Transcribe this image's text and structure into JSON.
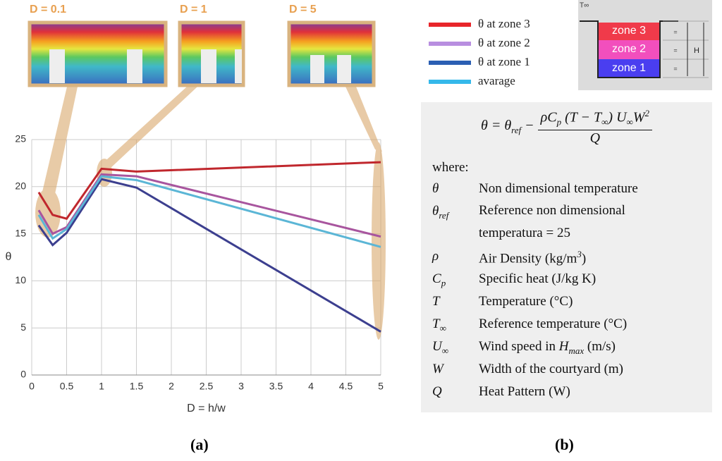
{
  "chart_data": {
    "type": "line",
    "x_label": "D = h/w",
    "y_label": "θ",
    "x": [
      0.1,
      0.3,
      0.5,
      1,
      1.5,
      5
    ],
    "series": [
      {
        "name": "θ at zone 3",
        "color": "#c0272d",
        "legend_color": "#e8252a",
        "values": [
          19.4,
          17.0,
          16.6,
          21.9,
          21.6,
          22.6
        ]
      },
      {
        "name": "θ at zone 2",
        "color": "#a8559e",
        "legend_color": "#b88ee0",
        "values": [
          17.5,
          15.0,
          15.7,
          21.3,
          21.1,
          14.7
        ]
      },
      {
        "name": "θ at zone 1",
        "color": "#3c3f8f",
        "legend_color": "#2b5fb3",
        "values": [
          15.9,
          13.8,
          15.1,
          20.8,
          19.9,
          4.6
        ]
      },
      {
        "name": "avarage",
        "color": "#5bb6d6",
        "legend_color": "#35b8ea",
        "values": [
          17.0,
          14.5,
          15.5,
          21.1,
          20.7,
          13.6
        ]
      }
    ],
    "xlim": [
      0,
      5
    ],
    "xticks": [
      0,
      0.5,
      1,
      1.5,
      2,
      2.5,
      3,
      3.5,
      4,
      4.5,
      5
    ],
    "ylim": [
      0,
      25
    ],
    "yticks": [
      0,
      5,
      10,
      15,
      20,
      25
    ],
    "grid": true
  },
  "insets": [
    "D = 0.1",
    "D = 1",
    "D = 5"
  ],
  "diagram": {
    "t_inf": "T∞",
    "zones": [
      "zone 3",
      "zone 2",
      "zone 1"
    ],
    "height": "H",
    "equal_marks": [
      "=",
      "=",
      "="
    ]
  },
  "formula": {
    "lhs": [
      {
        "text": "θ = θ"
      },
      {
        "sub": "ref"
      },
      {
        "text": " − "
      }
    ],
    "numerator": [
      {
        "text": "ρC"
      },
      {
        "sub": "p"
      },
      {
        "text": " (T − T"
      },
      {
        "sub": "∞"
      },
      {
        "text": ") U"
      },
      {
        "sub": "∞"
      },
      {
        "text": "W"
      },
      {
        "sup": "2"
      }
    ],
    "denominator": [
      {
        "text": "Q"
      }
    ]
  },
  "definitions": {
    "intro": "where:",
    "rows": [
      {
        "symbol": "θ",
        "text": "Non dimensional temperature"
      },
      {
        "symbol": "θ",
        "sub": "ref",
        "lines": [
          "Reference non dimensional",
          "temperatura = 25"
        ]
      },
      {
        "symbol": "ρ",
        "text": "Air Density (kg/m",
        "sup": "3",
        "after": ")"
      },
      {
        "symbol": "C",
        "sub": "p",
        "text": "Specific heat (J/kg K)"
      },
      {
        "symbol": "T",
        "text": "Temperature (°C)"
      },
      {
        "symbol": "T",
        "sub": "∞",
        "text": "Reference temperature (°C)"
      },
      {
        "symbol": "U",
        "sub": "∞",
        "text": "Wind speed in ",
        "em": "H",
        "em_sub": "max",
        "after": " (m/s)"
      },
      {
        "symbol": "W",
        "text": "Width of the courtyard (m)"
      },
      {
        "symbol": "Q",
        "text": "Heat Pattern (W)"
      }
    ]
  },
  "captions": [
    "(a)",
    "(b)"
  ]
}
